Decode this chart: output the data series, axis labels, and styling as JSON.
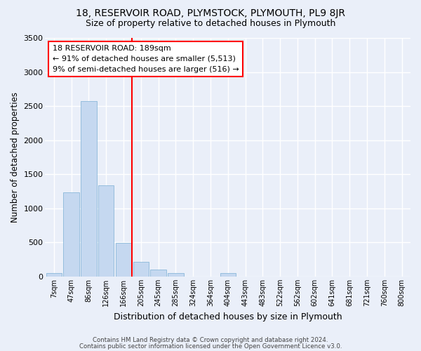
{
  "title1": "18, RESERVOIR ROAD, PLYMSTOCK, PLYMOUTH, PL9 8JR",
  "title2": "Size of property relative to detached houses in Plymouth",
  "xlabel": "Distribution of detached houses by size in Plymouth",
  "ylabel": "Number of detached properties",
  "categories": [
    "7sqm",
    "47sqm",
    "86sqm",
    "126sqm",
    "166sqm",
    "205sqm",
    "245sqm",
    "285sqm",
    "324sqm",
    "364sqm",
    "404sqm",
    "443sqm",
    "483sqm",
    "522sqm",
    "562sqm",
    "602sqm",
    "641sqm",
    "681sqm",
    "721sqm",
    "760sqm",
    "800sqm"
  ],
  "values": [
    50,
    1230,
    2570,
    1340,
    490,
    210,
    105,
    50,
    0,
    0,
    55,
    0,
    0,
    0,
    0,
    0,
    0,
    0,
    0,
    0,
    0
  ],
  "bar_color": "#c5d8f0",
  "bar_edge_color": "#7aafd4",
  "red_line_color": "red",
  "annotation_line1": "18 RESERVOIR ROAD: 189sqm",
  "annotation_line2": "← 91% of detached houses are smaller (5,513)",
  "annotation_line3": "9% of semi-detached houses are larger (516) →",
  "footer1": "Contains HM Land Registry data © Crown copyright and database right 2024.",
  "footer2": "Contains public sector information licensed under the Open Government Licence v3.0.",
  "ylim": [
    0,
    3500
  ],
  "yticks": [
    0,
    500,
    1000,
    1500,
    2000,
    2500,
    3000,
    3500
  ],
  "bg_color": "#eaeff9",
  "fig_bg_color": "#eaeff9",
  "grid_color": "white",
  "title_fontsize": 10,
  "subtitle_fontsize": 9,
  "red_line_index": 4.5
}
